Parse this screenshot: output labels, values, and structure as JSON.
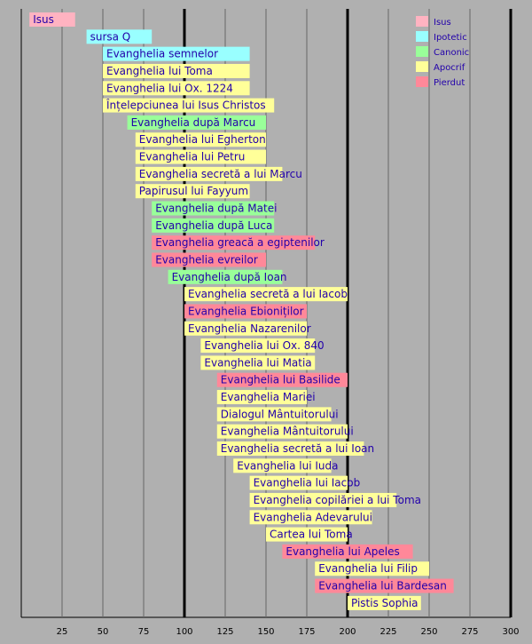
{
  "colors": {
    "background": "#b0b0b0",
    "Isus": "#ffb3c1",
    "Ipotetic": "#99ffff",
    "Canonic": "#99ff99",
    "Apocrif": "#ffff99",
    "Pierdut": "#ff8899",
    "label_text": "#2200aa",
    "grid_minor": "#666666",
    "grid_major": "#000000"
  },
  "chart_data": {
    "type": "bar",
    "orientation": "horizontal-range",
    "xlim": [
      0,
      300
    ],
    "x_ticks": [
      25,
      50,
      75,
      100,
      125,
      150,
      175,
      200,
      225,
      250,
      275,
      300
    ],
    "major_ticks": [
      100,
      200,
      300
    ],
    "grid": true,
    "legend_position": "top-right",
    "legend": [
      {
        "key": "Isus",
        "label": "Isus"
      },
      {
        "key": "Ipotetic",
        "label": "Ipotetic"
      },
      {
        "key": "Canonic",
        "label": "Canonic"
      },
      {
        "key": "Apocrif",
        "label": "Apocrif"
      },
      {
        "key": "Pierdut",
        "label": "Pierdut"
      }
    ],
    "bars": [
      {
        "label": "Isus",
        "start": 5,
        "end": 33,
        "category": "Isus"
      },
      {
        "label": "sursa Q",
        "start": 40,
        "end": 80,
        "category": "Ipotetic"
      },
      {
        "label": "Evanghelia semnelor",
        "start": 50,
        "end": 140,
        "category": "Ipotetic"
      },
      {
        "label": "Evanghelia lui Toma",
        "start": 50,
        "end": 140,
        "category": "Apocrif"
      },
      {
        "label": "Evanghelia lui Ox. 1224",
        "start": 50,
        "end": 140,
        "category": "Apocrif"
      },
      {
        "label": "Înțelepciunea lui Isus Christos",
        "start": 50,
        "end": 155,
        "category": "Apocrif"
      },
      {
        "label": "Evanghelia după Marcu",
        "start": 65,
        "end": 150,
        "category": "Canonic"
      },
      {
        "label": "Evanghelia lui Egherton",
        "start": 70,
        "end": 150,
        "category": "Apocrif"
      },
      {
        "label": "Evanghelia lui Petru",
        "start": 70,
        "end": 150,
        "category": "Apocrif"
      },
      {
        "label": "Evanghelia secretă a lui Marcu",
        "start": 70,
        "end": 160,
        "category": "Apocrif"
      },
      {
        "label": "Papirusul lui Fayyum",
        "start": 70,
        "end": 140,
        "category": "Apocrif"
      },
      {
        "label": "Evanghelia după Matei",
        "start": 80,
        "end": 155,
        "category": "Canonic"
      },
      {
        "label": "Evanghelia după Luca",
        "start": 80,
        "end": 155,
        "category": "Canonic"
      },
      {
        "label": "Evanghelia greacă a egiptenilor",
        "start": 80,
        "end": 180,
        "category": "Pierdut"
      },
      {
        "label": "Evanghelia evreilor",
        "start": 80,
        "end": 150,
        "category": "Pierdut"
      },
      {
        "label": "Evanghelia după Ioan",
        "start": 90,
        "end": 160,
        "category": "Canonic"
      },
      {
        "label": "Evanghelia secretă a lui Iacob",
        "start": 100,
        "end": 200,
        "category": "Apocrif"
      },
      {
        "label": "Evanghelia Ebioniților",
        "start": 100,
        "end": 175,
        "category": "Pierdut"
      },
      {
        "label": "Evanghelia Nazarenilor",
        "start": 100,
        "end": 175,
        "category": "Apocrif"
      },
      {
        "label": "Evanghelia lui Ox. 840",
        "start": 110,
        "end": 180,
        "category": "Apocrif"
      },
      {
        "label": "Evanghelia lui Matia",
        "start": 110,
        "end": 180,
        "category": "Apocrif"
      },
      {
        "label": "Evanghelia lui Basilide",
        "start": 120,
        "end": 200,
        "category": "Pierdut"
      },
      {
        "label": "Evanghelia Mariei",
        "start": 120,
        "end": 175,
        "category": "Apocrif"
      },
      {
        "label": "Dialogul Mântuitorului",
        "start": 120,
        "end": 190,
        "category": "Apocrif"
      },
      {
        "label": "Evanghelia Mântuitorului",
        "start": 120,
        "end": 200,
        "category": "Apocrif"
      },
      {
        "label": "Evanghelia secretă a lui Ioan",
        "start": 120,
        "end": 210,
        "category": "Apocrif"
      },
      {
        "label": "Evanghelia lui Iuda",
        "start": 130,
        "end": 190,
        "category": "Apocrif"
      },
      {
        "label": "Evanghelia lui Iacob",
        "start": 140,
        "end": 200,
        "category": "Apocrif"
      },
      {
        "label": "Evanghelia copilăriei a lui Toma",
        "start": 140,
        "end": 230,
        "category": "Apocrif"
      },
      {
        "label": "Evanghelia Adevarului",
        "start": 140,
        "end": 215,
        "category": "Apocrif"
      },
      {
        "label": "Cartea lui Toma",
        "start": 150,
        "end": 200,
        "category": "Apocrif"
      },
      {
        "label": "Evanghelia lui Apeles",
        "start": 160,
        "end": 240,
        "category": "Pierdut"
      },
      {
        "label": "Evanghelia lui Filip",
        "start": 180,
        "end": 250,
        "category": "Apocrif"
      },
      {
        "label": "Evanghelia lui Bardesan",
        "start": 180,
        "end": 265,
        "category": "Pierdut"
      },
      {
        "label": "Pistis Sophia",
        "start": 200,
        "end": 245,
        "category": "Apocrif"
      }
    ]
  }
}
